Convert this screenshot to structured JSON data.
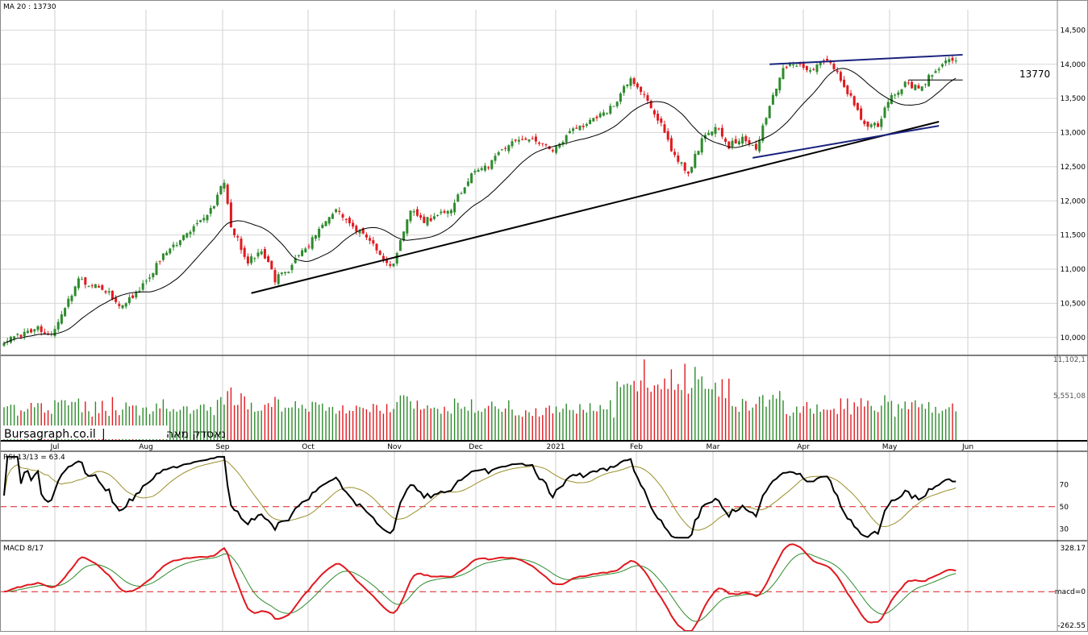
{
  "chart_data": [
    {
      "type": "candlestick",
      "panel": "price",
      "indicator_label": "MA 20 : 13730",
      "ylim": [
        9750,
        14800
      ],
      "y_ticks": [
        10000,
        10500,
        11000,
        11500,
        12000,
        12500,
        13000,
        13500,
        14000,
        14500
      ],
      "y_tick_labels": [
        "10,000",
        "10,500",
        "11,000",
        "11,500",
        "12,000",
        "12,500",
        "13,000",
        "13,500",
        "14,000",
        "14,500"
      ],
      "x_labels": [
        "Jul",
        "Aug",
        "Sep",
        "Oct",
        "Nov",
        "Dec",
        "2021",
        "Feb",
        "Mar",
        "Apr",
        "May",
        "Jun"
      ],
      "price_anchors": [
        [
          0,
          9950
        ],
        [
          10,
          10150
        ],
        [
          14,
          10020
        ],
        [
          22,
          10850
        ],
        [
          30,
          10700
        ],
        [
          34,
          10450
        ],
        [
          40,
          10700
        ],
        [
          47,
          11200
        ],
        [
          55,
          11550
        ],
        [
          62,
          11950
        ],
        [
          65,
          12300
        ],
        [
          67,
          11650
        ],
        [
          72,
          11100
        ],
        [
          76,
          11300
        ],
        [
          80,
          10850
        ],
        [
          84,
          11000
        ],
        [
          88,
          11250
        ],
        [
          92,
          11500
        ],
        [
          98,
          11900
        ],
        [
          102,
          11650
        ],
        [
          108,
          11450
        ],
        [
          112,
          11150
        ],
        [
          115,
          11050
        ],
        [
          120,
          11900
        ],
        [
          124,
          11700
        ],
        [
          132,
          11900
        ],
        [
          138,
          12400
        ],
        [
          143,
          12500
        ],
        [
          148,
          12800
        ],
        [
          155,
          12900
        ],
        [
          162,
          12750
        ],
        [
          168,
          13050
        ],
        [
          175,
          13200
        ],
        [
          180,
          13400
        ],
        [
          185,
          13800
        ],
        [
          190,
          13500
        ],
        [
          194,
          13100
        ],
        [
          198,
          12650
        ],
        [
          202,
          12400
        ],
        [
          206,
          12900
        ],
        [
          210,
          13100
        ],
        [
          214,
          12800
        ],
        [
          218,
          12950
        ],
        [
          222,
          12750
        ],
        [
          226,
          13400
        ],
        [
          230,
          13950
        ],
        [
          234,
          14000
        ],
        [
          238,
          13900
        ],
        [
          242,
          14050
        ],
        [
          246,
          13900
        ],
        [
          250,
          13500
        ],
        [
          254,
          13100
        ],
        [
          258,
          13100
        ],
        [
          262,
          13550
        ],
        [
          266,
          13700
        ],
        [
          270,
          13650
        ],
        [
          274,
          13850
        ],
        [
          278,
          14100
        ],
        [
          281,
          14020
        ]
      ],
      "lines": [
        {
          "name": "trend-support",
          "from": [
            73,
            10650
          ],
          "to": [
            276,
            13160
          ],
          "color": "#000000"
        },
        {
          "name": "lower-channel",
          "from": [
            221,
            12630
          ],
          "to": [
            276,
            13100
          ],
          "color": "#1a237e"
        },
        {
          "name": "upper-channel",
          "from": [
            226,
            14000
          ],
          "to": [
            283,
            14140
          ],
          "color": "#1a237e"
        },
        {
          "name": "level-13770",
          "from": [
            267,
            13770
          ],
          "to": [
            283,
            13770
          ],
          "color": "#000000"
        }
      ],
      "level_label": "13770",
      "up_color": "#2e8b2e",
      "down_color": "#e0191f"
    },
    {
      "type": "bar",
      "panel": "volume",
      "y_tick_labels": [
        "11,102,1",
        "5,551,08"
      ],
      "ylim": [
        0,
        11102100
      ]
    },
    {
      "type": "line",
      "panel": "rsi",
      "indicator_label": "RSI 13/13 = 63.4",
      "ylim": [
        20,
        100
      ],
      "y_ticks": [
        70,
        50,
        30
      ],
      "reference_level": 50,
      "last_value": 63.4,
      "color": "#000000",
      "signal_color": "#9a8f2a"
    },
    {
      "type": "line",
      "panel": "macd",
      "indicator_label": "MACD 8/17",
      "ylim": [
        -262.55,
        328.17
      ],
      "y_tick_labels": [
        "328.17",
        "macd=0",
        "-262.55"
      ],
      "reference_level": 0,
      "color": "#e0191f",
      "signal_color": "#2e8b2e"
    }
  ],
  "watermark": {
    "brand": "Bursagraph.co.il",
    "separator": "|",
    "instrument": "נאסדק מאה"
  }
}
